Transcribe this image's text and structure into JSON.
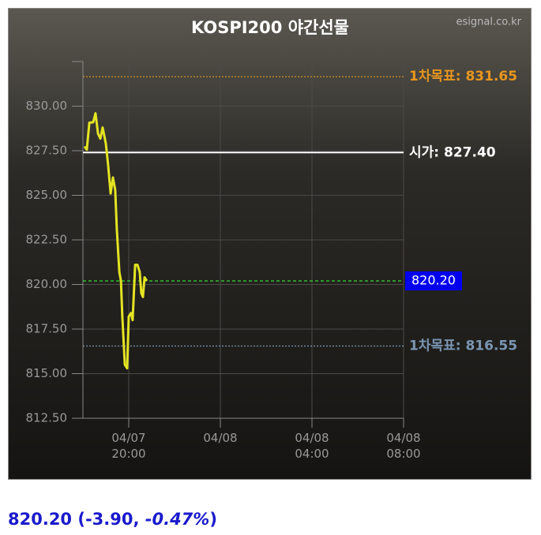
{
  "chart_data": {
    "type": "line",
    "title": "KOSPI200 야간선물",
    "source": "esignal.co.kr",
    "x": [
      18.07,
      18.17,
      18.28,
      18.45,
      18.55,
      18.66,
      18.76,
      18.86,
      19.0,
      19.1,
      19.21,
      19.31,
      19.41,
      19.48,
      19.59,
      19.66,
      19.72,
      19.83,
      19.93,
      20.0,
      20.1,
      20.17,
      20.28,
      20.38,
      20.48,
      20.55,
      20.62,
      20.69,
      20.79
    ],
    "series": [
      {
        "color": "#e4e422",
        "values": [
          827.74,
          827.56,
          829.07,
          829.1,
          829.6,
          828.45,
          828.18,
          828.8,
          827.9,
          826.7,
          825.1,
          826.0,
          825.3,
          823.1,
          820.7,
          820.2,
          818.2,
          815.5,
          815.3,
          818.2,
          818.4,
          818.0,
          821.1,
          821.1,
          820.7,
          819.5,
          819.3,
          820.4,
          820.2
        ]
      }
    ],
    "xlim": [
      18,
      32
    ],
    "xticks": [
      {
        "value": 20,
        "label": "04/07\n20:00"
      },
      {
        "value": 24,
        "label": "04/08"
      },
      {
        "value": 28,
        "label": "04/08\n04:00"
      },
      {
        "value": 32,
        "label": "04/08\n08:00"
      }
    ],
    "ylim": [
      812.5,
      832.5
    ],
    "yticks": [
      {
        "value": 812.5,
        "label": "812.50"
      },
      {
        "value": 815,
        "label": "815.00"
      },
      {
        "value": 817.5,
        "label": "817.50"
      },
      {
        "value": 820,
        "label": "820.00"
      },
      {
        "value": 822.5,
        "label": "822.50"
      },
      {
        "value": 825,
        "label": "825.00"
      },
      {
        "value": 827.5,
        "label": "827.50"
      },
      {
        "value": 830,
        "label": "830.00"
      }
    ],
    "grid": true,
    "reference_lines": [
      {
        "label": "1차목표: 831.65",
        "value": 831.65,
        "color": "#e8961e",
        "style": "dotted"
      },
      {
        "label": "시가: 827.40",
        "value": 827.4,
        "color": "#ffffff",
        "style": "solid"
      },
      {
        "label": "820.20",
        "value": 820.2,
        "color": "#33dd33",
        "style": "dashed",
        "box": "#0000ee"
      },
      {
        "label": "1차목표: 816.55",
        "value": 816.55,
        "color": "#7a96b4",
        "style": "dotted"
      }
    ],
    "footer": [
      {
        "text": "820.20 (-3.90, ",
        "italic": false
      },
      {
        "text": "-0.47%",
        "italic": true
      },
      {
        "text": ")",
        "italic": false
      }
    ]
  }
}
